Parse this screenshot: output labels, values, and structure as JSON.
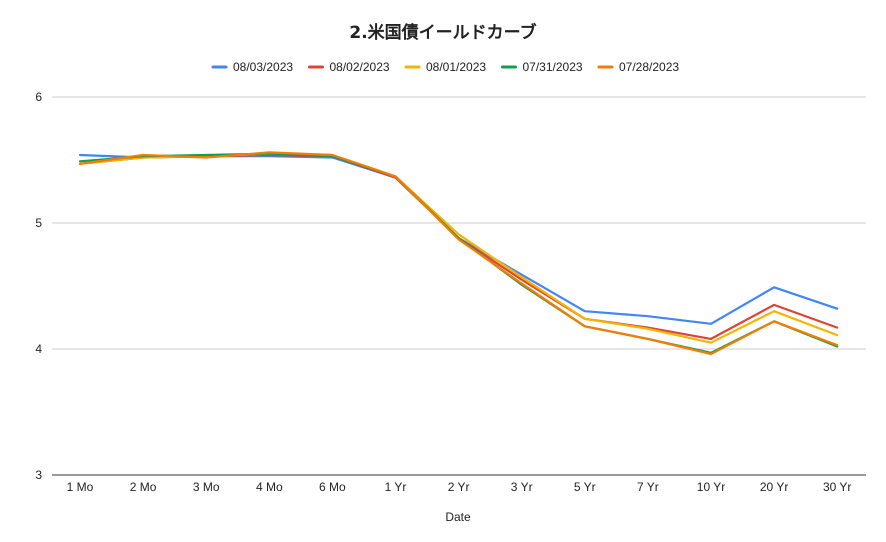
{
  "chart_data": {
    "type": "line",
    "title": "2.米国債イールドカーブ",
    "xlabel": "Date",
    "ylabel": "",
    "ylim": [
      3,
      6
    ],
    "yticks": [
      3,
      4,
      5,
      6
    ],
    "grid": true,
    "legend_position": "top",
    "categories": [
      "1 Mo",
      "2 Mo",
      "3 Mo",
      "4 Mo",
      "6 Mo",
      "1 Yr",
      "2 Yr",
      "3 Yr",
      "5 Yr",
      "7 Yr",
      "10 Yr",
      "20 Yr",
      "30 Yr"
    ],
    "series": [
      {
        "name": "08/03/2023",
        "color": "#4285F4",
        "values": [
          5.54,
          5.52,
          5.53,
          5.53,
          5.52,
          5.36,
          4.88,
          4.59,
          4.3,
          4.26,
          4.2,
          4.49,
          4.32
        ]
      },
      {
        "name": "08/02/2023",
        "color": "#DB4437",
        "values": [
          5.47,
          5.52,
          5.53,
          5.54,
          5.53,
          5.36,
          4.88,
          4.55,
          4.24,
          4.17,
          4.08,
          4.35,
          4.17
        ]
      },
      {
        "name": "08/01/2023",
        "color": "#F4B400",
        "values": [
          5.47,
          5.52,
          5.53,
          5.55,
          5.54,
          5.37,
          4.91,
          4.57,
          4.24,
          4.16,
          4.05,
          4.3,
          4.11
        ]
      },
      {
        "name": "07/31/2023",
        "color": "#0F9D58",
        "values": [
          5.49,
          5.53,
          5.54,
          5.55,
          5.53,
          5.37,
          4.88,
          4.51,
          4.18,
          4.08,
          3.97,
          4.22,
          4.02
        ]
      },
      {
        "name": "07/28/2023",
        "color": "#F57C00",
        "values": [
          5.47,
          5.54,
          5.52,
          5.56,
          5.54,
          5.37,
          4.87,
          4.52,
          4.18,
          4.08,
          3.96,
          4.22,
          4.03
        ]
      }
    ]
  }
}
